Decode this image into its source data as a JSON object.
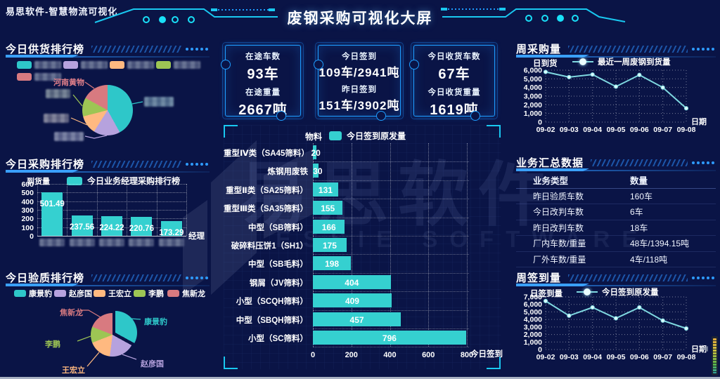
{
  "header": {
    "brand": "易思软件-智慧物流可视化",
    "title": "废钢采购可视化大屏"
  },
  "watermark": {
    "text": "易思软件",
    "subtext": "ESSIE SOFTWARE"
  },
  "sections": {
    "supply": {
      "title": "今日供货排行榜"
    },
    "purchase": {
      "title": "今日采购排行榜"
    },
    "quality": {
      "title": "今日验质排行榜"
    },
    "weekly_purchase": {
      "title": "周采购量"
    },
    "summary": {
      "title": "业务汇总数据"
    },
    "weekly_checkin": {
      "title": "周签到量"
    }
  },
  "stat_cards": [
    {
      "label1": "在途车数",
      "value1": "93车",
      "label2": "在途重量",
      "value2": "2667吨"
    },
    {
      "label1": "今日签到",
      "value1": "109车/2941吨",
      "label2": "昨日签到",
      "value2": "151车/3902吨"
    },
    {
      "label1": "今日收货车数",
      "value1": "67车",
      "label2": "今日收货重量",
      "value2": "1619吨"
    }
  ],
  "chart_data": [
    {
      "id": "supply-pie",
      "type": "pie",
      "title": "今日供货排行榜",
      "categories": [
        "",
        "",
        "",
        "",
        ""
      ],
      "values": [
        42,
        17,
        12,
        12,
        17
      ],
      "unit": "%",
      "values_estimated": true,
      "categories_blurred": true,
      "visible_callout": "河南黄物"
    },
    {
      "id": "purchase-bar",
      "type": "bar",
      "legend": "今日业务经理采购排行榜",
      "ylabel": "到货量",
      "xlabel": "经理",
      "categories": [
        "",
        "",
        "",
        "",
        ""
      ],
      "categories_blurred": true,
      "values": [
        501.49,
        237.56,
        224.22,
        220.76,
        173.29
      ],
      "ylim": [
        0,
        600
      ],
      "y_ticks": [
        0,
        100,
        200,
        300,
        400,
        500,
        600
      ]
    },
    {
      "id": "quality-pie",
      "type": "pie",
      "title": "今日验质排行榜",
      "categories": [
        "康景豹",
        "赵彦国",
        "王宏立",
        "李鹏",
        "焦新龙"
      ],
      "values": [
        33,
        19,
        17,
        12,
        19
      ],
      "unit": "%",
      "values_estimated": true
    },
    {
      "id": "material-hbar",
      "type": "bar",
      "orientation": "horizontal",
      "axis_label": "物料",
      "legend": "今日签到原发量",
      "axis_name": "今日签到",
      "categories": [
        "重型Ⅳ类（SA45筛料）",
        "炼钢用废铁",
        "重型Ⅱ类（SA25筛料）",
        "重型Ⅲ类（SA35筛料）",
        "中型（SB筛料）",
        "破碎料压饼1（SH1）",
        "中型（SB毛料）",
        "钢屑（JV筛料）",
        "小型（SCQH筛料）",
        "中型（SBQH筛料）",
        "小型（SC筛料）"
      ],
      "values": [
        20,
        30,
        131,
        155,
        166,
        175,
        198,
        404,
        409,
        457,
        796
      ],
      "xlim": [
        0,
        800
      ],
      "x_ticks": [
        0,
        200,
        400,
        600,
        800
      ]
    },
    {
      "id": "weekly-purchase-line",
      "type": "line",
      "ylabel": "日到货",
      "legend": "最近一周废钢到货量",
      "xlabel": "日期",
      "x": [
        "09-02",
        "09-03",
        "09-04",
        "09-05",
        "09-06",
        "09-07",
        "09-08"
      ],
      "values": [
        5800,
        5200,
        5500,
        4100,
        5450,
        4000,
        1600
      ],
      "ylim": [
        0,
        6000
      ],
      "values_estimated": true
    },
    {
      "id": "summary-table",
      "type": "table",
      "headers": [
        "业务类型",
        "数量"
      ],
      "rows": [
        [
          "昨日验质车数",
          "160车"
        ],
        [
          "今日改判车数",
          "6车"
        ],
        [
          "昨日改判车数",
          "18车"
        ],
        [
          "厂内车数/重量",
          "48车/1394.15吨"
        ],
        [
          "厂外车数/重量",
          "4车/118吨"
        ]
      ]
    },
    {
      "id": "weekly-checkin-line",
      "type": "line",
      "ylabel": "日签到量",
      "legend": "今日签到原发量",
      "xlabel": "日期",
      "x": [
        "09-02",
        "09-03",
        "09-04",
        "09-05",
        "09-06",
        "09-07",
        "09-08"
      ],
      "values": [
        6450,
        4500,
        5600,
        4150,
        5600,
        3850,
        2800
      ],
      "ylim": [
        0,
        7000
      ],
      "values_estimated": true
    }
  ],
  "colors": {
    "background": "#0a1446",
    "accent": "#19c8f0",
    "panel_line": "#1e9dff",
    "bar": "#35d0d0",
    "line": "#7fd8e0",
    "title_underline": "#3aa0ff",
    "series": [
      "#2ec7c9",
      "#b6a2de",
      "#ffb980",
      "#9dc554",
      "#d87a80"
    ],
    "callout_text_red": "#e2808a"
  }
}
